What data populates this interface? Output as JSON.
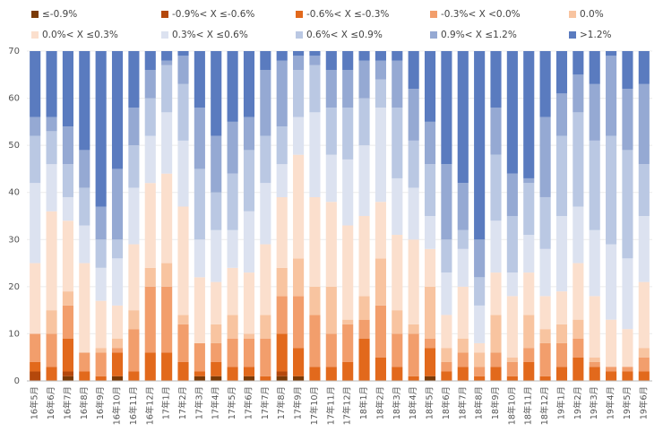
{
  "chart_data": {
    "type": "stacked_bar",
    "categories": [
      "16年5月",
      "16年6月",
      "16年7月",
      "16年8月",
      "16年9月",
      "16年10月",
      "16年11月",
      "16年12月",
      "17年1月",
      "17年2月",
      "17年3月",
      "17年4月",
      "17年5月",
      "17年6月",
      "17年7月",
      "17年8月",
      "17年9月",
      "17年10月",
      "17年11月",
      "17年12月",
      "18年1月",
      "18年2月",
      "18年3月",
      "18年4月",
      "18年5月",
      "18年6月",
      "18年7月",
      "18年8月",
      "18年9月",
      "18年10月",
      "18年11月",
      "18年12月",
      "19年1月",
      "19年2月",
      "19年3月",
      "19年4月",
      "19年5月",
      "19年6月"
    ],
    "series": [
      {
        "name": "≤-0.9%",
        "color": "#7a3a06",
        "values": [
          0,
          0,
          1,
          0,
          0,
          1,
          0,
          0,
          0,
          0,
          1,
          1,
          0,
          1,
          0,
          1,
          1,
          0,
          0,
          0,
          0,
          0,
          0,
          0,
          1,
          0,
          0,
          0,
          0,
          0,
          0,
          0,
          0,
          0,
          0,
          0,
          0,
          0
        ]
      },
      {
        "name": "-0.9%< X ≤-0.6%",
        "color": "#b4480c",
        "values": [
          2,
          0,
          1,
          0,
          0,
          0,
          0,
          0,
          0,
          0,
          0,
          0,
          0,
          0,
          0,
          1,
          0,
          0,
          0,
          0,
          0,
          0,
          0,
          0,
          0,
          0,
          0,
          0,
          0,
          0,
          0,
          0,
          0,
          0,
          0,
          0,
          0,
          0
        ]
      },
      {
        "name": "-0.6%< X ≤-0.3%",
        "color": "#e2691c",
        "values": [
          2,
          3,
          7,
          2,
          1,
          5,
          2,
          6,
          6,
          4,
          1,
          3,
          3,
          2,
          1,
          8,
          6,
          3,
          3,
          4,
          9,
          5,
          3,
          1,
          6,
          2,
          3,
          1,
          3,
          1,
          4,
          1,
          3,
          5,
          3,
          2,
          2,
          2
        ]
      },
      {
        "name": "-0.3%< X <0.0%",
        "color": "#f29e6c",
        "values": [
          6,
          7,
          7,
          4,
          5,
          1,
          9,
          14,
          14,
          8,
          6,
          4,
          6,
          6,
          8,
          8,
          11,
          11,
          7,
          8,
          4,
          11,
          7,
          9,
          2,
          2,
          3,
          2,
          3,
          3,
          3,
          7,
          5,
          4,
          1,
          1,
          1,
          3
        ]
      },
      {
        "name": "0.0%",
        "color": "#f8c4a0",
        "values": [
          0,
          5,
          3,
          0,
          1,
          2,
          4,
          4,
          5,
          2,
          0,
          4,
          5,
          1,
          5,
          6,
          8,
          6,
          10,
          1,
          5,
          10,
          5,
          2,
          11,
          3,
          3,
          3,
          8,
          1,
          7,
          3,
          4,
          4,
          1,
          0,
          0,
          2
        ]
      },
      {
        "name": "0.0%< X ≤0.3%",
        "color": "#fbdfcd",
        "values": [
          15,
          21,
          15,
          19,
          10,
          7,
          14,
          18,
          19,
          23,
          14,
          9,
          10,
          13,
          15,
          15,
          22,
          19,
          18,
          20,
          17,
          12,
          16,
          18,
          8,
          7,
          11,
          2,
          9,
          13,
          9,
          7,
          7,
          12,
          13,
          10,
          8,
          14
        ]
      },
      {
        "name": "0.3%< X ≤0.6%",
        "color": "#dce2f0",
        "values": [
          17,
          10,
          5,
          8,
          7,
          10,
          12,
          10,
          13,
          14,
          8,
          11,
          8,
          13,
          13,
          7,
          8,
          18,
          10,
          14,
          15,
          20,
          12,
          11,
          7,
          9,
          8,
          8,
          11,
          5,
          8,
          10,
          16,
          12,
          14,
          16,
          15,
          14
        ]
      },
      {
        "name": "0.6%< X ≤0.9%",
        "color": "#bac8e3",
        "values": [
          10,
          7,
          7,
          8,
          6,
          4,
          9,
          8,
          10,
          12,
          15,
          8,
          12,
          13,
          10,
          8,
          10,
          10,
          10,
          11,
          10,
          6,
          15,
          10,
          11,
          7,
          4,
          6,
          14,
          12,
          11,
          11,
          17,
          20,
          19,
          23,
          23,
          11
        ]
      },
      {
        "name": "0.9%< X ≤1.2%",
        "color": "#95a9d3",
        "values": [
          4,
          3,
          8,
          8,
          7,
          15,
          8,
          6,
          1,
          6,
          13,
          12,
          11,
          7,
          14,
          14,
          3,
          2,
          8,
          8,
          8,
          4,
          10,
          11,
          9,
          16,
          10,
          8,
          10,
          9,
          1,
          17,
          9,
          8,
          12,
          17,
          13,
          17
        ]
      },
      {
        "name": ">1.2%",
        "color": "#5a7bbf",
        "values": [
          14,
          14,
          16,
          21,
          33,
          25,
          12,
          4,
          2,
          1,
          12,
          18,
          15,
          14,
          4,
          2,
          1,
          1,
          4,
          4,
          2,
          2,
          2,
          8,
          15,
          24,
          28,
          40,
          12,
          26,
          27,
          14,
          9,
          5,
          7,
          1,
          8,
          7
        ]
      }
    ],
    "ylim": [
      0,
      70
    ],
    "yticks": [
      0,
      10,
      20,
      30,
      40,
      50,
      60,
      70
    ],
    "grid": true,
    "legend": "top"
  }
}
